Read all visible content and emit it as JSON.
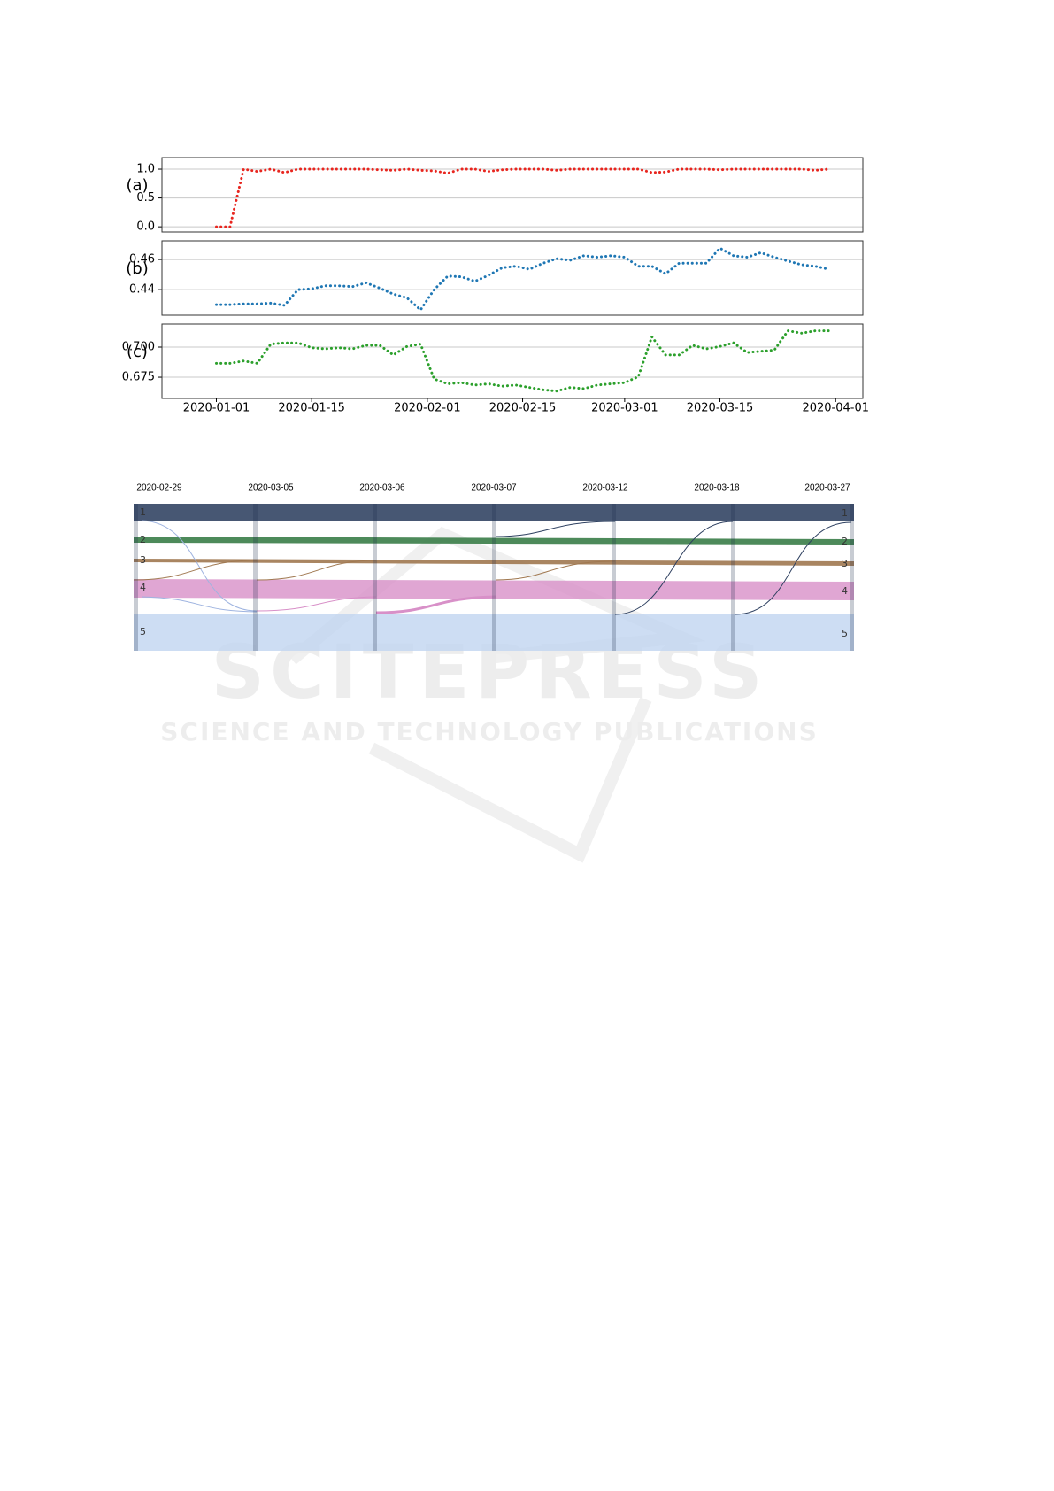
{
  "chart_data": [
    {
      "type": "line",
      "label": "(a)",
      "x": [
        "2020-01-01",
        "2020-01-03",
        "2020-01-05",
        "2020-01-07",
        "2020-01-09",
        "2020-01-11",
        "2020-01-13",
        "2020-01-15",
        "2020-01-17",
        "2020-01-19",
        "2020-01-21",
        "2020-01-23",
        "2020-01-25",
        "2020-01-27",
        "2020-01-29",
        "2020-01-31",
        "2020-02-02",
        "2020-02-04",
        "2020-02-06",
        "2020-02-08",
        "2020-02-10",
        "2020-02-12",
        "2020-02-14",
        "2020-02-16",
        "2020-02-18",
        "2020-02-20",
        "2020-02-22",
        "2020-02-24",
        "2020-02-26",
        "2020-02-28",
        "2020-03-01",
        "2020-03-03",
        "2020-03-05",
        "2020-03-07",
        "2020-03-09",
        "2020-03-11",
        "2020-03-13",
        "2020-03-15",
        "2020-03-17",
        "2020-03-19",
        "2020-03-21",
        "2020-03-23",
        "2020-03-25",
        "2020-03-27",
        "2020-03-29",
        "2020-03-31"
      ],
      "series": [
        {
          "color": "#e8261f",
          "values": [
            0,
            0,
            1.0,
            0.96,
            1.0,
            0.94,
            1.0,
            1.0,
            1.0,
            1.0,
            1.0,
            1.0,
            0.99,
            0.98,
            1.0,
            0.98,
            0.97,
            0.93,
            1.0,
            1.0,
            0.96,
            0.99,
            1.0,
            1.0,
            1.0,
            0.98,
            1.0,
            1.0,
            1.0,
            1.0,
            1.0,
            1.0,
            0.94,
            0.95,
            1.0,
            1.0,
            1.0,
            0.99,
            1.0,
            1.0,
            1.0,
            1.0,
            1.0,
            1.0,
            0.98,
            1.0
          ]
        }
      ],
      "xlim": [
        "2019-12-24",
        "2020-04-05"
      ],
      "ylim": [
        -0.09,
        1.2
      ],
      "yticks": [
        {
          "value": 0,
          "label": "0.0"
        },
        0.5,
        {
          "value": 1,
          "label": "1.0"
        }
      ],
      "grid": true
    },
    {
      "type": "line",
      "label": "(b)",
      "x": [
        "2020-01-01",
        "2020-01-03",
        "2020-01-05",
        "2020-01-07",
        "2020-01-09",
        "2020-01-11",
        "2020-01-13",
        "2020-01-15",
        "2020-01-17",
        "2020-01-19",
        "2020-01-21",
        "2020-01-23",
        "2020-01-25",
        "2020-01-27",
        "2020-01-29",
        "2020-01-31",
        "2020-02-02",
        "2020-02-04",
        "2020-02-06",
        "2020-02-08",
        "2020-02-10",
        "2020-02-12",
        "2020-02-14",
        "2020-02-16",
        "2020-02-18",
        "2020-02-20",
        "2020-02-22",
        "2020-02-24",
        "2020-02-26",
        "2020-02-28",
        "2020-03-01",
        "2020-03-03",
        "2020-03-05",
        "2020-03-07",
        "2020-03-09",
        "2020-03-11",
        "2020-03-13",
        "2020-03-15",
        "2020-03-17",
        "2020-03-19",
        "2020-03-21",
        "2020-03-23",
        "2020-03-25",
        "2020-03-27",
        "2020-03-29",
        "2020-03-31"
      ],
      "series": [
        {
          "color": "#1f77b4",
          "values": [
            0.43,
            0.43,
            0.4305,
            0.4305,
            0.431,
            0.4295,
            0.44,
            0.4405,
            0.4425,
            0.4425,
            0.442,
            0.4445,
            0.441,
            0.437,
            0.4345,
            0.4265,
            0.44,
            0.449,
            0.4485,
            0.4455,
            0.4495,
            0.4545,
            0.4555,
            0.4535,
            0.4575,
            0.4605,
            0.4595,
            0.4625,
            0.4615,
            0.4625,
            0.4615,
            0.4555,
            0.4555,
            0.4505,
            0.4575,
            0.4575,
            0.4575,
            0.4675,
            0.4625,
            0.4615,
            0.4645,
            0.4615,
            0.459,
            0.4565,
            0.4555,
            0.4535
          ]
        }
      ],
      "xlim": [
        "2019-12-24",
        "2020-04-05"
      ],
      "ylim": [
        0.423,
        0.4724
      ],
      "yticks": [
        0.44,
        0.46
      ],
      "grid": true
    },
    {
      "type": "line",
      "label": "(c)",
      "x": [
        "2020-01-01",
        "2020-01-03",
        "2020-01-05",
        "2020-01-07",
        "2020-01-09",
        "2020-01-11",
        "2020-01-13",
        "2020-01-15",
        "2020-01-17",
        "2020-01-19",
        "2020-01-21",
        "2020-01-23",
        "2020-01-25",
        "2020-01-27",
        "2020-01-29",
        "2020-01-31",
        "2020-02-02",
        "2020-02-04",
        "2020-02-06",
        "2020-02-08",
        "2020-02-10",
        "2020-02-12",
        "2020-02-14",
        "2020-02-16",
        "2020-02-18",
        "2020-02-20",
        "2020-02-22",
        "2020-02-24",
        "2020-02-26",
        "2020-02-28",
        "2020-03-01",
        "2020-03-03",
        "2020-03-05",
        "2020-03-07",
        "2020-03-09",
        "2020-03-11",
        "2020-03-13",
        "2020-03-15",
        "2020-03-17",
        "2020-03-19",
        "2020-03-21",
        "2020-03-23",
        "2020-03-25",
        "2020-03-27",
        "2020-03-29",
        "2020-03-31"
      ],
      "series": [
        {
          "color": "#2ca02c",
          "values": [
            0.6865,
            0.6865,
            0.6885,
            0.6865,
            0.7025,
            0.7035,
            0.7035,
            0.6995,
            0.6985,
            0.6995,
            0.6985,
            0.7015,
            0.7015,
            0.6935,
            0.7005,
            0.7025,
            0.6735,
            0.6695,
            0.6705,
            0.6685,
            0.6695,
            0.6675,
            0.6685,
            0.6665,
            0.6645,
            0.6635,
            0.6665,
            0.6655,
            0.6685,
            0.6695,
            0.6705,
            0.6755,
            0.7085,
            0.6935,
            0.6935,
            0.7015,
            0.6985,
            0.7005,
            0.7035,
            0.6955,
            0.6965,
            0.6975,
            0.7135,
            0.7115,
            0.7135,
            0.7135
          ]
        }
      ],
      "xlim": [
        "2019-12-24",
        "2020-04-05"
      ],
      "ylim": [
        0.6574,
        0.7191
      ],
      "yticks": [
        0.675,
        {
          "value": 0.7,
          "label": "0.700"
        }
      ],
      "grid": true,
      "xticks": [
        "2020-01-01",
        "2020-01-15",
        "2020-02-01",
        "2020-02-15",
        "2020-03-01",
        "2020-03-15",
        "2020-04-01"
      ]
    }
  ],
  "diagram": {
    "columns": [
      "2020-02-29",
      "2020-03-05",
      "2020-03-06",
      "2020-03-07",
      "2020-03-12",
      "2020-03-18",
      "2020-03-27"
    ],
    "clusters": [
      "1",
      "2",
      "3",
      "4",
      "5"
    ]
  },
  "watermark": {
    "title": "SCITEPRESS",
    "subtitle": "SCIENCE AND TECHNOLOGY PUBLICATIONS"
  }
}
